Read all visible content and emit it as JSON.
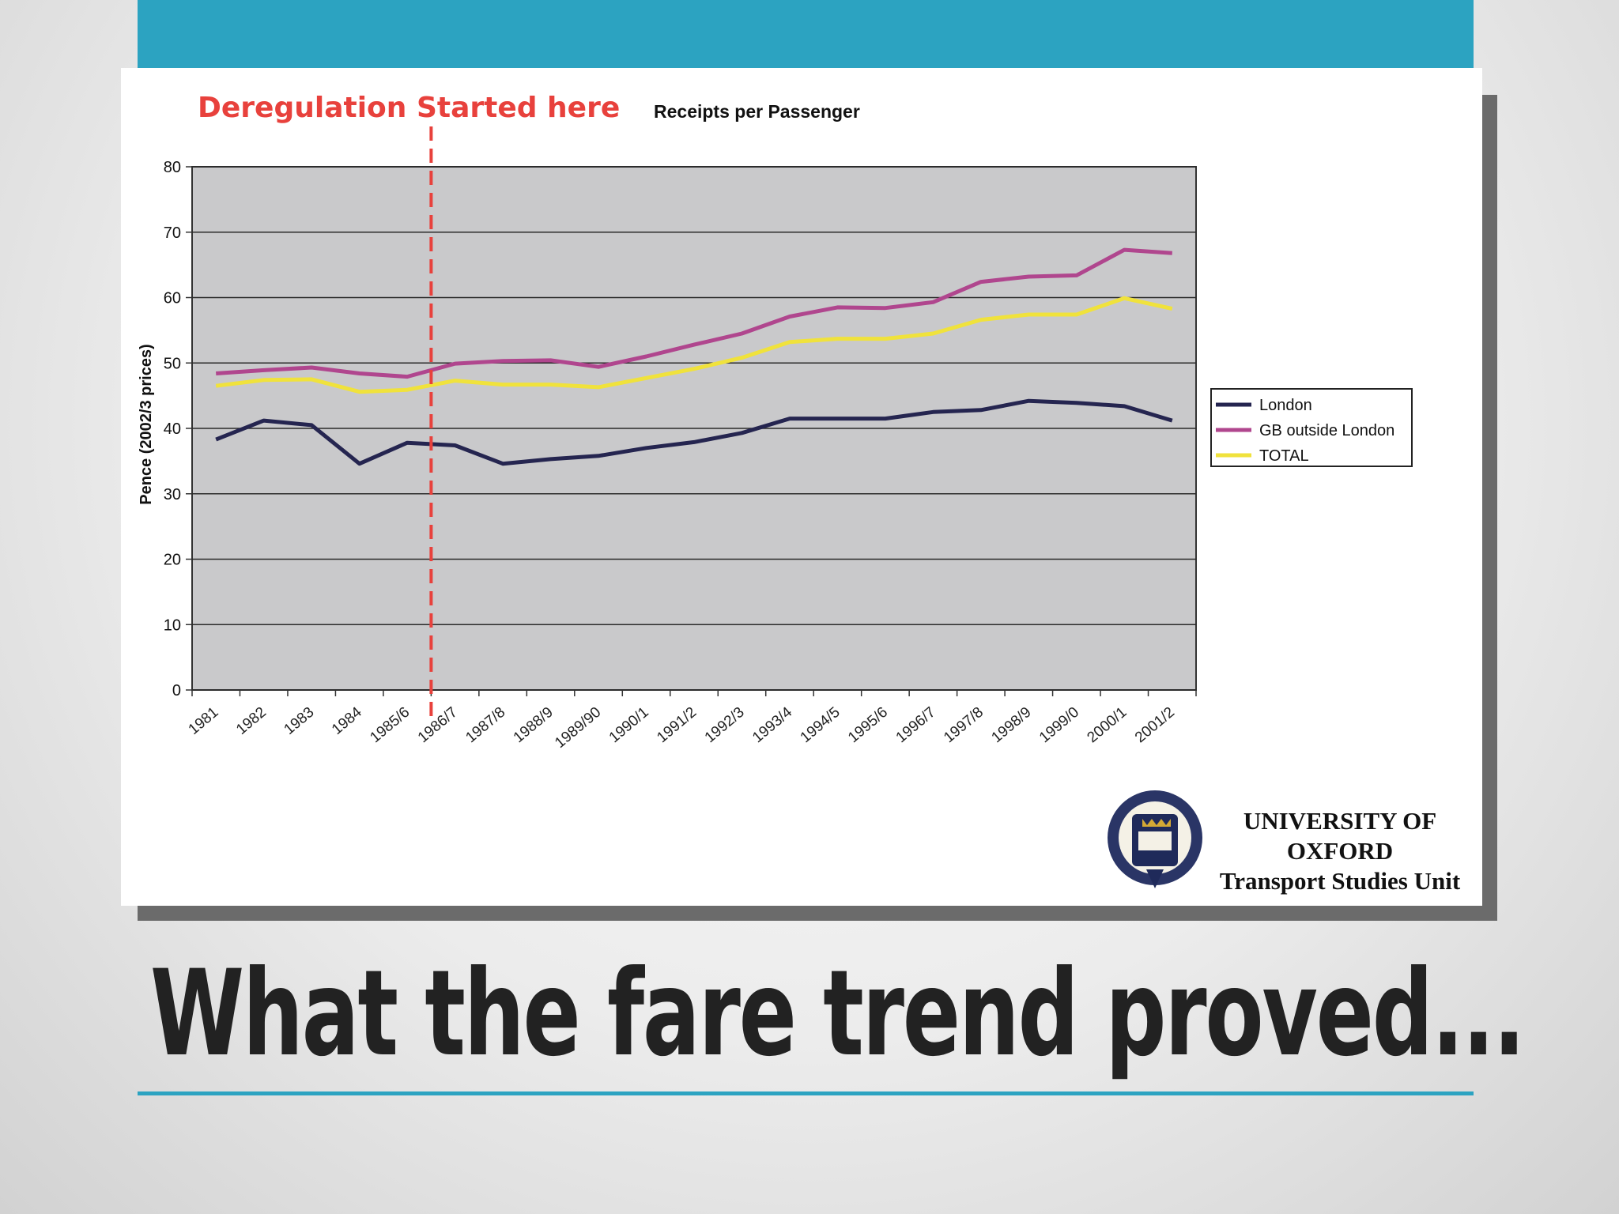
{
  "slide": {
    "title": "What the fare trend proved..."
  },
  "annotation": {
    "label": "Deregulation Started here",
    "x_category": "1986/7",
    "color": "#e8413c"
  },
  "logo": {
    "line1": "UNIVERSITY OF",
    "line2": "OXFORD",
    "line3": "Transport Studies Unit",
    "icon": "university-crest-icon"
  },
  "colors": {
    "accent": "#2ca3c1",
    "plot_bg": "#c9c9cb"
  },
  "chart_data": {
    "type": "line",
    "title": "Receipts per Passenger",
    "xlabel": "",
    "ylabel": "Pence (2002/3 prices)",
    "ylim": [
      0,
      80
    ],
    "yticks": [
      0,
      10,
      20,
      30,
      40,
      50,
      60,
      70,
      80
    ],
    "grid": true,
    "legend": "right",
    "categories": [
      "1981",
      "1982",
      "1983",
      "1984",
      "1985/6",
      "1986/7",
      "1987/8",
      "1988/9",
      "1989/90",
      "1990/1",
      "1991/2",
      "1992/3",
      "1993/4",
      "1994/5",
      "1995/6",
      "1996/7",
      "1997/8",
      "1998/9",
      "1999/0",
      "2000/1",
      "2001/2"
    ],
    "series": [
      {
        "name": "London",
        "color": "#252550",
        "values": [
          38.3,
          41.2,
          40.5,
          34.6,
          37.8,
          37.4,
          34.6,
          35.3,
          35.8,
          37.0,
          37.9,
          39.3,
          41.5,
          41.5,
          41.5,
          42.5,
          42.8,
          44.2,
          43.9,
          43.4,
          41.2
        ]
      },
      {
        "name": "GB outside London",
        "color": "#b0468e",
        "values": [
          48.4,
          48.9,
          49.3,
          48.4,
          47.9,
          49.9,
          50.3,
          50.4,
          49.4,
          51.0,
          52.8,
          54.5,
          57.1,
          58.5,
          58.4,
          59.3,
          62.4,
          63.2,
          63.4,
          67.3,
          66.8
        ]
      },
      {
        "name": "TOTAL",
        "color": "#f0e23c",
        "values": [
          46.5,
          47.4,
          47.5,
          45.6,
          45.9,
          47.3,
          46.7,
          46.7,
          46.3,
          47.7,
          49.1,
          50.8,
          53.2,
          53.7,
          53.7,
          54.5,
          56.6,
          57.4,
          57.4,
          59.9,
          58.3
        ]
      }
    ]
  }
}
